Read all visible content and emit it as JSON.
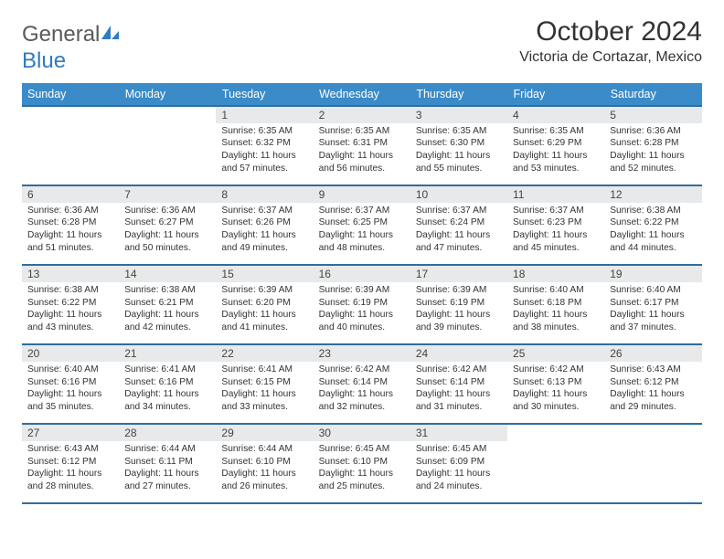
{
  "brand": {
    "name_part1": "General",
    "name_part2": "Blue"
  },
  "title": "October 2024",
  "location": "Victoria de Cortazar, Mexico",
  "colors": {
    "header_bg": "#3b8bc9",
    "row_divider": "#2e6ea0",
    "daynum_bg": "#e8e9ea",
    "text": "#333333",
    "brand_blue": "#2e7cc0"
  },
  "weekdays": [
    "Sunday",
    "Monday",
    "Tuesday",
    "Wednesday",
    "Thursday",
    "Friday",
    "Saturday"
  ],
  "weeks": [
    [
      null,
      null,
      {
        "n": "1",
        "sr": "6:35 AM",
        "ss": "6:32 PM",
        "dl": "11 hours and 57 minutes."
      },
      {
        "n": "2",
        "sr": "6:35 AM",
        "ss": "6:31 PM",
        "dl": "11 hours and 56 minutes."
      },
      {
        "n": "3",
        "sr": "6:35 AM",
        "ss": "6:30 PM",
        "dl": "11 hours and 55 minutes."
      },
      {
        "n": "4",
        "sr": "6:35 AM",
        "ss": "6:29 PM",
        "dl": "11 hours and 53 minutes."
      },
      {
        "n": "5",
        "sr": "6:36 AM",
        "ss": "6:28 PM",
        "dl": "11 hours and 52 minutes."
      }
    ],
    [
      {
        "n": "6",
        "sr": "6:36 AM",
        "ss": "6:28 PM",
        "dl": "11 hours and 51 minutes."
      },
      {
        "n": "7",
        "sr": "6:36 AM",
        "ss": "6:27 PM",
        "dl": "11 hours and 50 minutes."
      },
      {
        "n": "8",
        "sr": "6:37 AM",
        "ss": "6:26 PM",
        "dl": "11 hours and 49 minutes."
      },
      {
        "n": "9",
        "sr": "6:37 AM",
        "ss": "6:25 PM",
        "dl": "11 hours and 48 minutes."
      },
      {
        "n": "10",
        "sr": "6:37 AM",
        "ss": "6:24 PM",
        "dl": "11 hours and 47 minutes."
      },
      {
        "n": "11",
        "sr": "6:37 AM",
        "ss": "6:23 PM",
        "dl": "11 hours and 45 minutes."
      },
      {
        "n": "12",
        "sr": "6:38 AM",
        "ss": "6:22 PM",
        "dl": "11 hours and 44 minutes."
      }
    ],
    [
      {
        "n": "13",
        "sr": "6:38 AM",
        "ss": "6:22 PM",
        "dl": "11 hours and 43 minutes."
      },
      {
        "n": "14",
        "sr": "6:38 AM",
        "ss": "6:21 PM",
        "dl": "11 hours and 42 minutes."
      },
      {
        "n": "15",
        "sr": "6:39 AM",
        "ss": "6:20 PM",
        "dl": "11 hours and 41 minutes."
      },
      {
        "n": "16",
        "sr": "6:39 AM",
        "ss": "6:19 PM",
        "dl": "11 hours and 40 minutes."
      },
      {
        "n": "17",
        "sr": "6:39 AM",
        "ss": "6:19 PM",
        "dl": "11 hours and 39 minutes."
      },
      {
        "n": "18",
        "sr": "6:40 AM",
        "ss": "6:18 PM",
        "dl": "11 hours and 38 minutes."
      },
      {
        "n": "19",
        "sr": "6:40 AM",
        "ss": "6:17 PM",
        "dl": "11 hours and 37 minutes."
      }
    ],
    [
      {
        "n": "20",
        "sr": "6:40 AM",
        "ss": "6:16 PM",
        "dl": "11 hours and 35 minutes."
      },
      {
        "n": "21",
        "sr": "6:41 AM",
        "ss": "6:16 PM",
        "dl": "11 hours and 34 minutes."
      },
      {
        "n": "22",
        "sr": "6:41 AM",
        "ss": "6:15 PM",
        "dl": "11 hours and 33 minutes."
      },
      {
        "n": "23",
        "sr": "6:42 AM",
        "ss": "6:14 PM",
        "dl": "11 hours and 32 minutes."
      },
      {
        "n": "24",
        "sr": "6:42 AM",
        "ss": "6:14 PM",
        "dl": "11 hours and 31 minutes."
      },
      {
        "n": "25",
        "sr": "6:42 AM",
        "ss": "6:13 PM",
        "dl": "11 hours and 30 minutes."
      },
      {
        "n": "26",
        "sr": "6:43 AM",
        "ss": "6:12 PM",
        "dl": "11 hours and 29 minutes."
      }
    ],
    [
      {
        "n": "27",
        "sr": "6:43 AM",
        "ss": "6:12 PM",
        "dl": "11 hours and 28 minutes."
      },
      {
        "n": "28",
        "sr": "6:44 AM",
        "ss": "6:11 PM",
        "dl": "11 hours and 27 minutes."
      },
      {
        "n": "29",
        "sr": "6:44 AM",
        "ss": "6:10 PM",
        "dl": "11 hours and 26 minutes."
      },
      {
        "n": "30",
        "sr": "6:45 AM",
        "ss": "6:10 PM",
        "dl": "11 hours and 25 minutes."
      },
      {
        "n": "31",
        "sr": "6:45 AM",
        "ss": "6:09 PM",
        "dl": "11 hours and 24 minutes."
      },
      null,
      null
    ]
  ],
  "labels": {
    "sunrise": "Sunrise:",
    "sunset": "Sunset:",
    "daylight": "Daylight:"
  }
}
